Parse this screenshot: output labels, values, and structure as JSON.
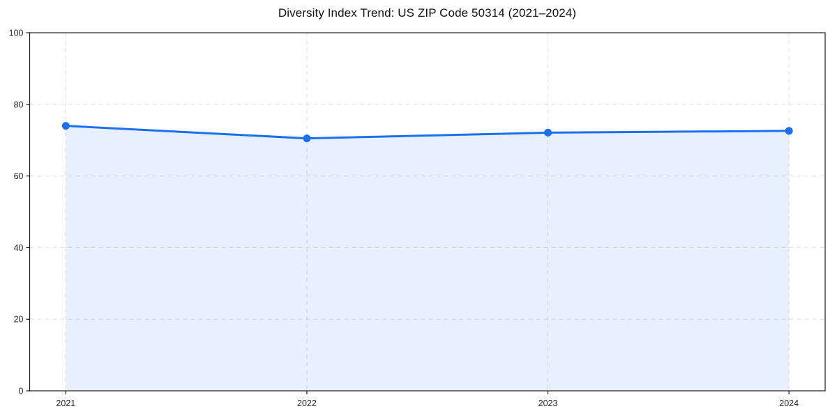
{
  "chart_data": {
    "type": "area",
    "title": "Diversity Index Trend: US ZIP Code 50314 (2021–2024)",
    "x": [
      2021,
      2022,
      2023,
      2024
    ],
    "xtick_labels": [
      "2021",
      "2022",
      "2023",
      "2024"
    ],
    "series": [
      {
        "name": "Diversity Index",
        "values": [
          74.0,
          70.5,
          72.1,
          72.6
        ]
      }
    ],
    "xlabel": "",
    "ylabel": "",
    "ylim": [
      0,
      100
    ],
    "yticks": [
      0,
      20,
      40,
      60,
      80,
      100
    ],
    "x_margin_fraction": 0.05,
    "grid": true,
    "grid_style": "dashed",
    "legend": false,
    "line_color": "#1b70f0",
    "marker_color": "#1b70f0",
    "fill_color": "rgba(27,112,240,0.10)",
    "grid_color": "#dedede",
    "axis_color": "#1a1a1a",
    "tick_label_color": "#262626",
    "title_color": "#111111",
    "background_color": "#ffffff"
  }
}
